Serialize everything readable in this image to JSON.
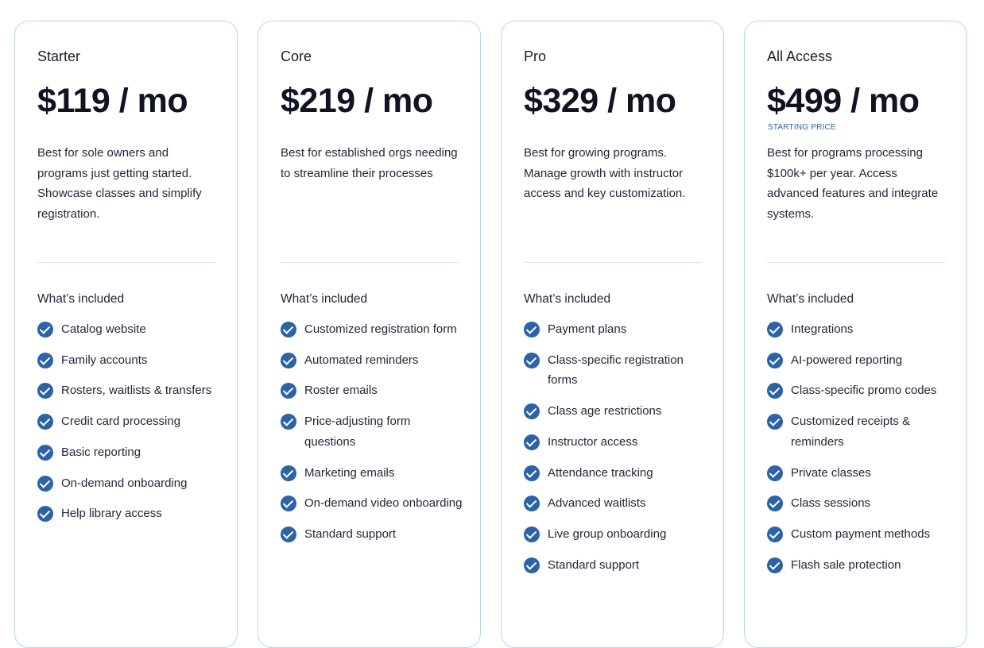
{
  "plans": [
    {
      "name": "Starter",
      "price": "$119 / mo",
      "price_note": "",
      "description": "Best for sole owners and programs just getting started. Showcase classes and simplify registration.",
      "included_heading": "What’s included",
      "features": [
        "Catalog website",
        "Family accounts",
        "Rosters, waitlists & transfers",
        "Credit card processing",
        "Basic reporting",
        "On-demand onboarding",
        "Help library access"
      ]
    },
    {
      "name": "Core",
      "price": "$219 / mo",
      "price_note": "",
      "description": "Best for established orgs needing to streamline their processes",
      "included_heading": "What’s included",
      "features": [
        "Customized registration form",
        "Automated reminders",
        "Roster emails",
        "Price-adjusting form questions",
        "Marketing emails",
        "On-demand video onboarding",
        "Standard support"
      ]
    },
    {
      "name": "Pro",
      "price": "$329 / mo",
      "price_note": "",
      "description": "Best for growing programs. Manage growth with instructor access and key customization.",
      "included_heading": "What’s included",
      "features": [
        "Payment plans",
        "Class-specific registration forms",
        "Class age restrictions",
        "Instructor access",
        "Attendance tracking",
        "Advanced waitlists",
        "Live group onboarding",
        "Standard support"
      ]
    },
    {
      "name": "All Access",
      "price": "$499 / mo",
      "price_note": "STARTING PRICE",
      "description": "Best for programs processing $100k+ per year. Access advanced features and integrate systems.",
      "included_heading": "What’s included",
      "features": [
        "Integrations",
        "AI-powered reporting",
        "Class-specific promo codes",
        "Customized receipts & reminders",
        "Private classes",
        "Class sessions",
        "Custom payment methods",
        "Flash sale protection"
      ]
    }
  ],
  "icons": {
    "feature": "check-circle-icon"
  },
  "colors": {
    "accent": "#2c62a6",
    "card_border": "#b9d6ee",
    "text": "#24263a",
    "price": "#111322"
  }
}
